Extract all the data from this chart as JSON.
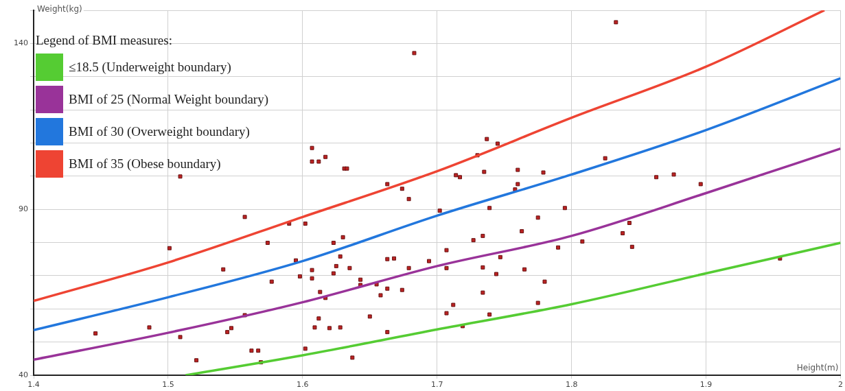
{
  "chart_data": {
    "type": "scatter",
    "xlabel": "Height(m)",
    "ylabel": "Weight(kg)",
    "legend_title": "Legend of BMI measures:",
    "xlim": [
      1.4,
      2.0
    ],
    "xticks": [
      1.4,
      1.5,
      1.6,
      1.7,
      1.8,
      1.9,
      2
    ],
    "ylim": [
      40,
      150
    ],
    "yticks": [
      40,
      {
        "value": 50,
        "label": null
      },
      {
        "value": 60,
        "label": null
      },
      {
        "value": 70,
        "label": null
      },
      {
        "value": 80,
        "label": null
      },
      90,
      {
        "value": 100,
        "label": null
      },
      {
        "value": 110,
        "label": null
      },
      {
        "value": 120,
        "label": null
      },
      {
        "value": 130,
        "label": null
      },
      140,
      {
        "value": 150,
        "label": null
      }
    ],
    "grid": true,
    "legend": "top left",
    "marker": "square",
    "series": [
      {
        "type": "line",
        "name": "≤18.5 (Underweight boundary)",
        "color": "#55cc33",
        "marker": "none",
        "x": [
          1.513,
          1.6,
          1.7,
          1.8,
          1.9,
          2.0
        ],
        "values": [
          40,
          46.0,
          53.8,
          61.4,
          70.7,
          79.9
        ]
      },
      {
        "type": "line",
        "name": "BMI of 25 (Normal Weight boundary)",
        "color": "#993399",
        "marker": "none",
        "x": [
          1.4,
          1.5,
          1.6,
          1.7,
          1.8,
          1.9,
          2.0
        ],
        "values": [
          44.7,
          52.8,
          62.0,
          72.9,
          82.0,
          94.9,
          108.3
        ]
      },
      {
        "type": "line",
        "name": "BMI of 30 (Overweight boundary)",
        "color": "#2277dd",
        "marker": "none",
        "x": [
          1.4,
          1.5,
          1.6,
          1.7,
          1.8,
          1.9,
          2.0
        ],
        "values": [
          53.6,
          63.5,
          74.4,
          88.1,
          100.5,
          113.9,
          129.5
        ]
      },
      {
        "type": "line",
        "name": "BMI of 35 (Obese boundary)",
        "color": "#ee4433",
        "marker": "none",
        "x": [
          1.4,
          1.5,
          1.6,
          1.7,
          1.8,
          1.9,
          1.988
        ],
        "values": [
          62.4,
          74.0,
          87.7,
          101.5,
          117.6,
          133.0,
          150
        ]
      },
      {
        "color": "#bb2222",
        "x": [
          1.446,
          1.486,
          1.509,
          1.509,
          1.501,
          1.521,
          1.541,
          1.544,
          1.547,
          1.557,
          1.557,
          1.562,
          1.567,
          1.569,
          1.574,
          1.577,
          1.59,
          1.595,
          1.598,
          1.602,
          1.602,
          1.607,
          1.607,
          1.612,
          1.617,
          1.607,
          1.607,
          1.609,
          1.612,
          1.613,
          1.617,
          1.62,
          1.628,
          1.623,
          1.623,
          1.625,
          1.628,
          1.63,
          1.631,
          1.633,
          1.635,
          1.637,
          1.643,
          1.643,
          1.65,
          1.655,
          1.658,
          1.663,
          1.663,
          1.668,
          1.663,
          1.663,
          1.674,
          1.674,
          1.679,
          1.679,
          1.683,
          1.694,
          1.702,
          1.707,
          1.707,
          1.707,
          1.712,
          1.714,
          1.717,
          1.719,
          1.727,
          1.73,
          1.734,
          1.734,
          1.734,
          1.735,
          1.737,
          1.739,
          1.739,
          1.745,
          1.744,
          1.747,
          1.758,
          1.76,
          1.76,
          1.763,
          1.765,
          1.775,
          1.775,
          1.779,
          1.78,
          1.79,
          1.795,
          1.808,
          1.825,
          1.833,
          1.838,
          1.843,
          1.845,
          1.863,
          1.876,
          1.896,
          1.955
        ],
        "values": [
          52.6,
          54.4,
          51.5,
          99.9,
          78.3,
          44.5,
          71.9,
          53.0,
          54.2,
          87.7,
          58.1,
          47.4,
          47.4,
          43.9,
          79.9,
          68.2,
          85.7,
          74.6,
          69.8,
          85.7,
          48.0,
          104.4,
          108.5,
          104.4,
          105.8,
          71.7,
          69.2,
          54.4,
          57.1,
          65.1,
          63.3,
          54.2,
          54.4,
          79.9,
          70.7,
          72.9,
          75.8,
          81.6,
          102.3,
          102.3,
          72.3,
          45.3,
          68.8,
          67.2,
          57.7,
          67.4,
          64.1,
          97.6,
          75.0,
          75.2,
          66.1,
          53.0,
          65.7,
          96.2,
          93.1,
          72.3,
          137.1,
          74.4,
          89.6,
          77.7,
          72.3,
          58.7,
          61.2,
          100.3,
          99.7,
          54.8,
          80.7,
          106.3,
          82.0,
          72.5,
          64.9,
          101.3,
          111.2,
          58.3,
          90.4,
          109.8,
          70.5,
          75.6,
          96.0,
          97.6,
          101.9,
          83.4,
          71.9,
          61.8,
          87.5,
          101.1,
          68.2,
          78.5,
          90.4,
          80.3,
          105.4,
          146.4,
          82.8,
          85.9,
          78.7,
          99.7,
          100.5,
          97.6,
          75.2
        ]
      }
    ]
  }
}
